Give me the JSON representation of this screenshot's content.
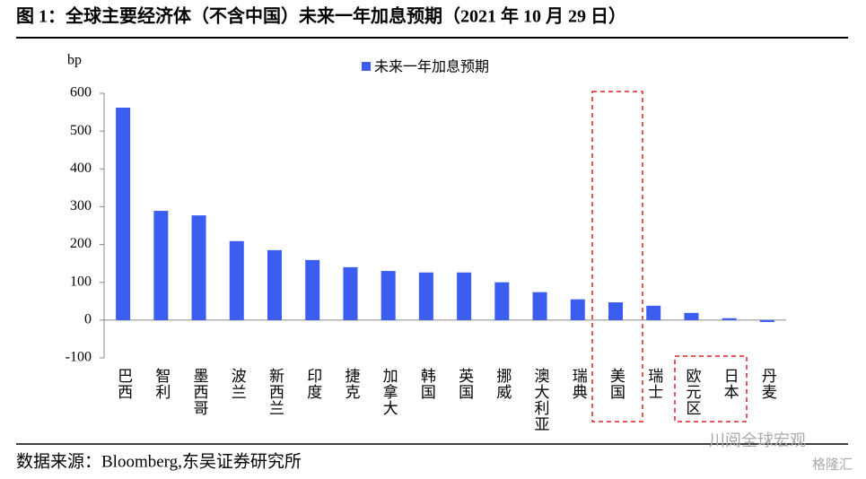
{
  "chart_data": {
    "type": "bar",
    "title": "图 1：全球主要经济体（不含中国）未来一年加息预期（2021 年 10 月 29 日）",
    "y_label": "bp",
    "categories": [
      "巴西",
      "智利",
      "墨西哥",
      "波兰",
      "新西兰",
      "印度",
      "捷克",
      "加拿大",
      "韩国",
      "英国",
      "挪威",
      "澳大利亚",
      "瑞典",
      "美国",
      "瑞士",
      "欧元区",
      "日本",
      "丹麦"
    ],
    "series": [
      {
        "name": "未来一年加息预期",
        "color": "#3b5ef0",
        "values": [
          562,
          289,
          277,
          209,
          185,
          159,
          140,
          130,
          126,
          126,
          100,
          74,
          55,
          47,
          38,
          19,
          5,
          -5
        ]
      }
    ],
    "ylim": [
      -100,
      600
    ],
    "yticks": [
      -100,
      0,
      100,
      200,
      300,
      400,
      500,
      600
    ],
    "source": "数据来源：Bloomberg,东吴证券研究所",
    "watermarks": [
      "川阅全球宏观",
      "格隆汇"
    ]
  }
}
